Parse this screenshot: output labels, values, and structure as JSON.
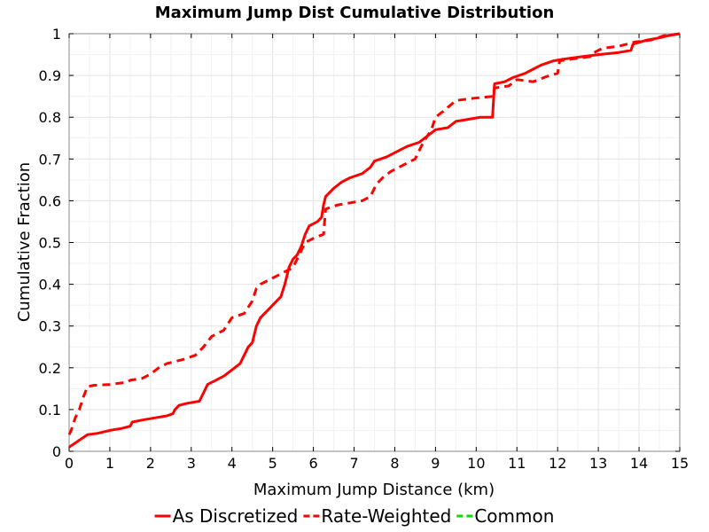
{
  "chart_data": {
    "type": "line",
    "title": "Maximum Jump Dist Cumulative Distribution",
    "xlabel": "Maximum Jump Distance (km)",
    "ylabel": "Cumulative Fraction",
    "xlim": [
      0,
      15
    ],
    "ylim": [
      0,
      1
    ],
    "xticks": [
      0,
      1,
      2,
      3,
      4,
      5,
      6,
      7,
      8,
      9,
      10,
      11,
      12,
      13,
      14,
      15
    ],
    "yticks": [
      0,
      0.1,
      0.2,
      0.3,
      0.4,
      0.5,
      0.6,
      0.7,
      0.8,
      0.9,
      1
    ],
    "ytick_labels": [
      "0",
      "0.1",
      "0.2",
      "0.3",
      "0.4",
      "0.5",
      "0.6",
      "0.7",
      "0.8",
      "0.9",
      "1"
    ],
    "grid": true,
    "legend_position": "bottom",
    "series": [
      {
        "name": "As Discretized",
        "color": "#ff0000",
        "dash": "solid",
        "points": [
          [
            0,
            0.01
          ],
          [
            0.15,
            0.02
          ],
          [
            0.3,
            0.03
          ],
          [
            0.45,
            0.04
          ],
          [
            0.7,
            0.043
          ],
          [
            1.0,
            0.05
          ],
          [
            1.3,
            0.055
          ],
          [
            1.5,
            0.06
          ],
          [
            1.55,
            0.07
          ],
          [
            1.8,
            0.075
          ],
          [
            2.1,
            0.08
          ],
          [
            2.4,
            0.085
          ],
          [
            2.55,
            0.09
          ],
          [
            2.6,
            0.1
          ],
          [
            2.7,
            0.11
          ],
          [
            2.9,
            0.115
          ],
          [
            3.2,
            0.12
          ],
          [
            3.3,
            0.14
          ],
          [
            3.4,
            0.16
          ],
          [
            3.6,
            0.17
          ],
          [
            3.8,
            0.18
          ],
          [
            4.0,
            0.195
          ],
          [
            4.2,
            0.21
          ],
          [
            4.3,
            0.23
          ],
          [
            4.4,
            0.25
          ],
          [
            4.5,
            0.26
          ],
          [
            4.55,
            0.28
          ],
          [
            4.6,
            0.3
          ],
          [
            4.7,
            0.32
          ],
          [
            4.8,
            0.33
          ],
          [
            4.9,
            0.34
          ],
          [
            5.0,
            0.35
          ],
          [
            5.2,
            0.37
          ],
          [
            5.3,
            0.4
          ],
          [
            5.4,
            0.44
          ],
          [
            5.5,
            0.46
          ],
          [
            5.6,
            0.47
          ],
          [
            5.7,
            0.49
          ],
          [
            5.8,
            0.52
          ],
          [
            5.9,
            0.54
          ],
          [
            6.1,
            0.55
          ],
          [
            6.2,
            0.56
          ],
          [
            6.25,
            0.59
          ],
          [
            6.3,
            0.61
          ],
          [
            6.5,
            0.63
          ],
          [
            6.7,
            0.645
          ],
          [
            6.9,
            0.655
          ],
          [
            7.2,
            0.665
          ],
          [
            7.4,
            0.68
          ],
          [
            7.5,
            0.695
          ],
          [
            7.8,
            0.705
          ],
          [
            8.0,
            0.715
          ],
          [
            8.3,
            0.73
          ],
          [
            8.6,
            0.74
          ],
          [
            8.8,
            0.755
          ],
          [
            9.0,
            0.77
          ],
          [
            9.3,
            0.775
          ],
          [
            9.5,
            0.79
          ],
          [
            9.8,
            0.795
          ],
          [
            10.1,
            0.8
          ],
          [
            10.4,
            0.8
          ],
          [
            10.45,
            0.88
          ],
          [
            10.7,
            0.885
          ],
          [
            10.9,
            0.895
          ],
          [
            11.2,
            0.905
          ],
          [
            11.4,
            0.915
          ],
          [
            11.6,
            0.925
          ],
          [
            11.9,
            0.935
          ],
          [
            12.2,
            0.94
          ],
          [
            12.6,
            0.945
          ],
          [
            13.0,
            0.95
          ],
          [
            13.5,
            0.955
          ],
          [
            13.8,
            0.96
          ],
          [
            13.85,
            0.975
          ],
          [
            14.2,
            0.985
          ],
          [
            14.5,
            0.99
          ],
          [
            14.7,
            0.995
          ],
          [
            15.0,
            1.0
          ]
        ]
      },
      {
        "name": "Rate-Weighted",
        "color": "#ff0000",
        "dash": "dashed",
        "points": [
          [
            0,
            0.04
          ],
          [
            0.05,
            0.05
          ],
          [
            0.15,
            0.08
          ],
          [
            0.25,
            0.1
          ],
          [
            0.35,
            0.13
          ],
          [
            0.45,
            0.155
          ],
          [
            0.6,
            0.158
          ],
          [
            1.0,
            0.16
          ],
          [
            1.4,
            0.165
          ],
          [
            1.5,
            0.17
          ],
          [
            1.8,
            0.175
          ],
          [
            2.0,
            0.185
          ],
          [
            2.2,
            0.2
          ],
          [
            2.4,
            0.21
          ],
          [
            2.8,
            0.22
          ],
          [
            3.1,
            0.23
          ],
          [
            3.3,
            0.25
          ],
          [
            3.5,
            0.275
          ],
          [
            3.8,
            0.29
          ],
          [
            4.0,
            0.32
          ],
          [
            4.3,
            0.33
          ],
          [
            4.5,
            0.36
          ],
          [
            4.6,
            0.39
          ],
          [
            4.7,
            0.4
          ],
          [
            4.9,
            0.41
          ],
          [
            5.1,
            0.42
          ],
          [
            5.3,
            0.43
          ],
          [
            5.5,
            0.44
          ],
          [
            5.6,
            0.46
          ],
          [
            5.7,
            0.48
          ],
          [
            5.8,
            0.5
          ],
          [
            6.0,
            0.51
          ],
          [
            6.25,
            0.52
          ],
          [
            6.3,
            0.58
          ],
          [
            6.6,
            0.59
          ],
          [
            6.9,
            0.595
          ],
          [
            7.2,
            0.6
          ],
          [
            7.4,
            0.61
          ],
          [
            7.55,
            0.64
          ],
          [
            7.7,
            0.655
          ],
          [
            7.9,
            0.67
          ],
          [
            8.1,
            0.68
          ],
          [
            8.3,
            0.69
          ],
          [
            8.5,
            0.7
          ],
          [
            8.7,
            0.74
          ],
          [
            8.9,
            0.77
          ],
          [
            9.0,
            0.8
          ],
          [
            9.2,
            0.815
          ],
          [
            9.5,
            0.84
          ],
          [
            9.9,
            0.845
          ],
          [
            10.4,
            0.85
          ],
          [
            10.45,
            0.87
          ],
          [
            10.8,
            0.875
          ],
          [
            11.0,
            0.89
          ],
          [
            11.4,
            0.885
          ],
          [
            11.8,
            0.9
          ],
          [
            12.0,
            0.905
          ],
          [
            12.05,
            0.935
          ],
          [
            12.4,
            0.94
          ],
          [
            12.8,
            0.945
          ],
          [
            12.9,
            0.955
          ],
          [
            13.1,
            0.965
          ],
          [
            13.5,
            0.97
          ],
          [
            13.7,
            0.975
          ],
          [
            13.9,
            0.98
          ],
          [
            14.3,
            0.985
          ],
          [
            14.6,
            0.995
          ],
          [
            15.0,
            1.0
          ]
        ]
      },
      {
        "name": "Common",
        "color": "#00dd00",
        "dash": "dashed",
        "points": []
      }
    ]
  }
}
